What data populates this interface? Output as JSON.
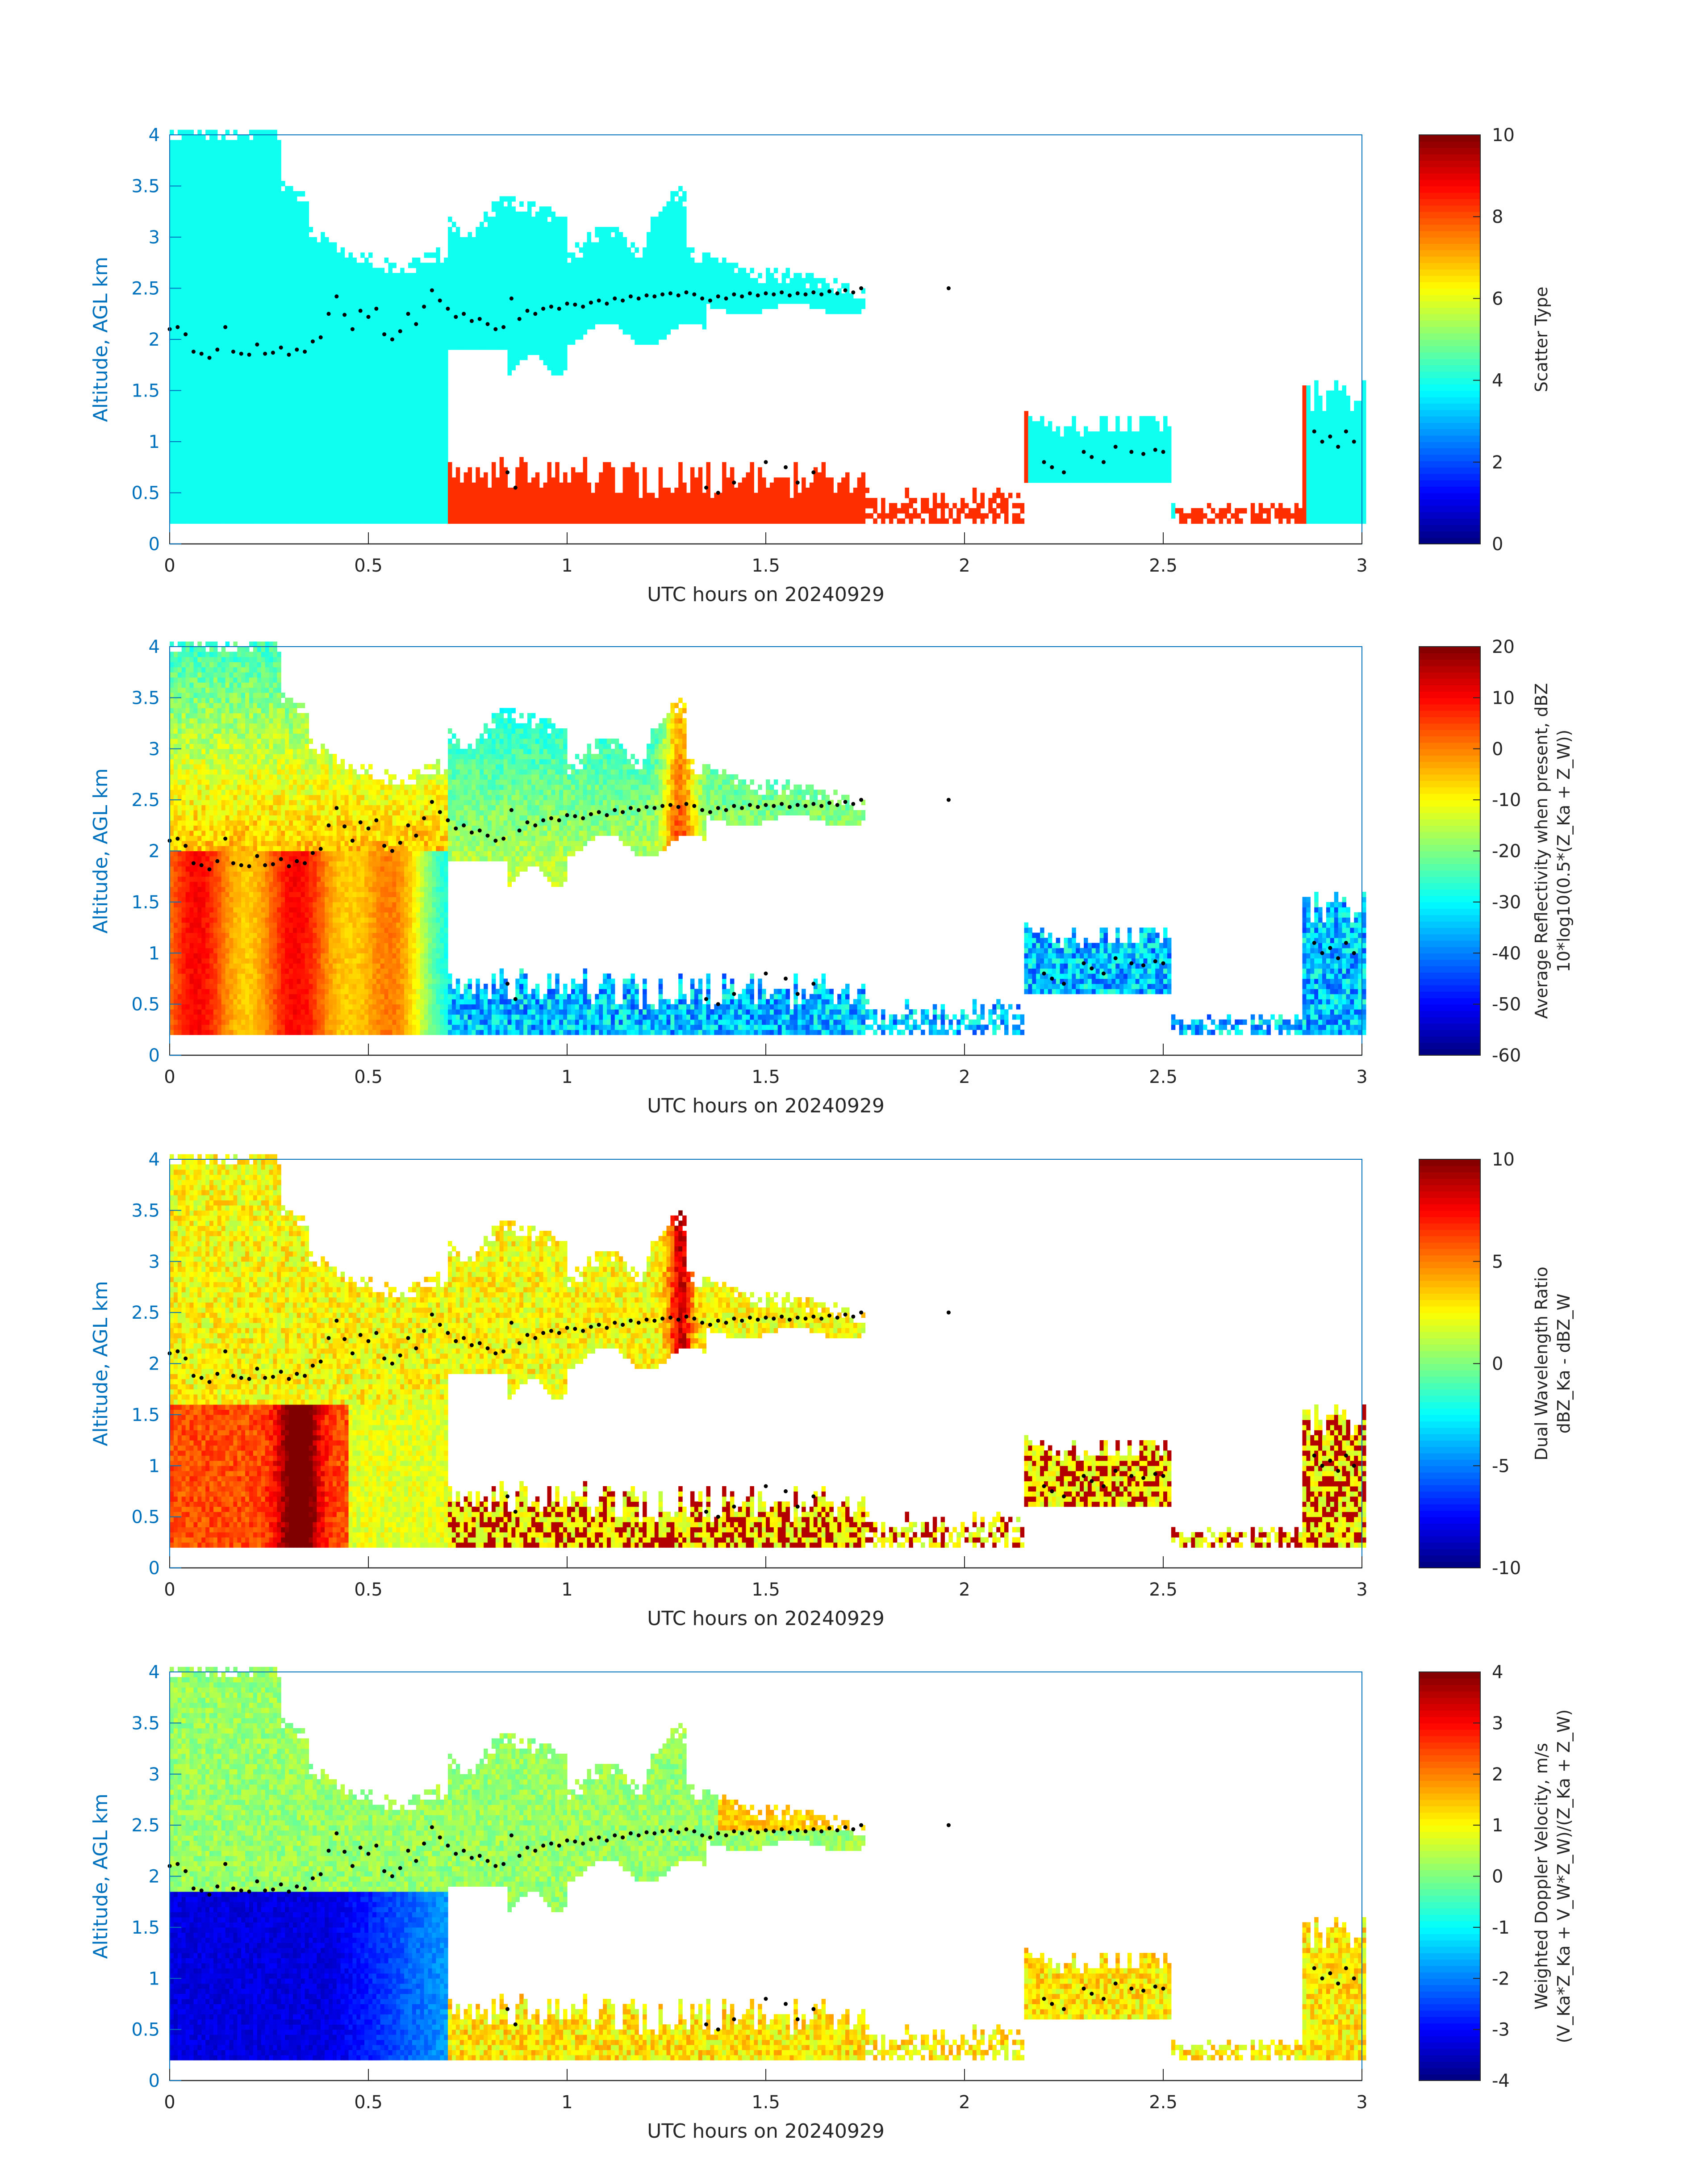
{
  "chart_data": [
    {
      "type": "heatmap",
      "xlabel": "UTC hours on 20240929",
      "ylabel": "Altitude, AGL km",
      "xlim": [
        0,
        3
      ],
      "ylim": [
        0,
        4
      ],
      "xticks": [
        "0",
        "0.5",
        "1",
        "1.5",
        "2",
        "2.5",
        "3"
      ],
      "yticks": [
        "0",
        "0.5",
        "1",
        "1.5",
        "2",
        "2.5",
        "3",
        "3.5",
        "4"
      ],
      "colorbar": {
        "label_lines": [
          "Scatter Type"
        ],
        "min": 0,
        "max": 10,
        "ticks": [
          "0",
          "2",
          "4",
          "6",
          "8",
          "10"
        ]
      },
      "cmap": "jet",
      "dominant_values": [
        3.9,
        8.3
      ]
    },
    {
      "type": "heatmap",
      "xlabel": "UTC hours on 20240929",
      "ylabel": "Altitude, AGL km",
      "xlim": [
        0,
        3
      ],
      "ylim": [
        0,
        4
      ],
      "xticks": [
        "0",
        "0.5",
        "1",
        "1.5",
        "2",
        "2.5",
        "3"
      ],
      "yticks": [
        "0",
        "0.5",
        "1",
        "1.5",
        "2",
        "2.5",
        "3",
        "3.5",
        "4"
      ],
      "colorbar": {
        "label_lines": [
          "Average Reflectivity when present, dBZ",
          "10*log10(0.5*(Z_Ka + Z_W))"
        ],
        "min": -60,
        "max": 20,
        "ticks": [
          "-60",
          "-50",
          "-40",
          "-30",
          "-20",
          "-10",
          "0",
          "10",
          "20"
        ]
      },
      "cmap": "jet"
    },
    {
      "type": "heatmap",
      "xlabel": "UTC hours on 20240929",
      "ylabel": "Altitude, AGL km",
      "xlim": [
        0,
        3
      ],
      "ylim": [
        0,
        4
      ],
      "xticks": [
        "0",
        "0.5",
        "1",
        "1.5",
        "2",
        "2.5",
        "3"
      ],
      "yticks": [
        "0",
        "0.5",
        "1",
        "1.5",
        "2",
        "2.5",
        "3",
        "3.5",
        "4"
      ],
      "colorbar": {
        "label_lines": [
          "Dual Wavelength Ratio",
          "dBZ_Ka - dBZ_W"
        ],
        "min": -10,
        "max": 10,
        "ticks": [
          "-10",
          "-5",
          "0",
          "5",
          "10"
        ]
      },
      "cmap": "jet"
    },
    {
      "type": "heatmap",
      "xlabel": "UTC hours on 20240929",
      "ylabel": "Altitude, AGL km",
      "xlim": [
        0,
        3
      ],
      "ylim": [
        0,
        4
      ],
      "xticks": [
        "0",
        "0.5",
        "1",
        "1.5",
        "2",
        "2.5",
        "3"
      ],
      "yticks": [
        "0",
        "0.5",
        "1",
        "1.5",
        "2",
        "2.5",
        "3",
        "3.5",
        "4"
      ],
      "colorbar": {
        "label_lines": [
          "Weighted Doppler Velocity, m/s",
          "(V_Ka*Z_Ka + V_W*Z_W)/(Z_Ka + Z_W)"
        ],
        "min": -4,
        "max": 4,
        "ticks": [
          "-4",
          "-3",
          "-2",
          "-1",
          "0",
          "1",
          "2",
          "3",
          "4"
        ]
      },
      "cmap": "jet"
    }
  ],
  "cloud_top_points": {
    "t": [
      0.0,
      0.02,
      0.04,
      0.06,
      0.08,
      0.1,
      0.12,
      0.14,
      0.16,
      0.18,
      0.2,
      0.22,
      0.24,
      0.26,
      0.28,
      0.3,
      0.32,
      0.34,
      0.36,
      0.38,
      0.4,
      0.42,
      0.44,
      0.46,
      0.48,
      0.5,
      0.52,
      0.54,
      0.56,
      0.58,
      0.6,
      0.62,
      0.64,
      0.66,
      0.68,
      0.7,
      0.72,
      0.74,
      0.76,
      0.78,
      0.8,
      0.82,
      0.84,
      0.86,
      0.88,
      0.9,
      0.92,
      0.94,
      0.96,
      0.98,
      1.0,
      1.02,
      1.04,
      1.06,
      1.08,
      1.1,
      1.12,
      1.14,
      1.16,
      1.18,
      1.2,
      1.22,
      1.24,
      1.26,
      1.28,
      1.3,
      1.32,
      1.34,
      1.36,
      1.38,
      1.4,
      1.42,
      1.44,
      1.46,
      1.48,
      1.5,
      1.52,
      1.54,
      1.56,
      1.58,
      1.6,
      1.62,
      1.64,
      1.66,
      1.68,
      1.7,
      1.72,
      1.74,
      1.96
    ],
    "z": [
      2.1,
      2.12,
      2.05,
      1.88,
      1.86,
      1.82,
      1.9,
      2.12,
      1.88,
      1.86,
      1.85,
      1.95,
      1.86,
      1.87,
      1.92,
      1.85,
      1.9,
      1.88,
      1.98,
      2.02,
      2.25,
      2.42,
      2.24,
      2.1,
      2.28,
      2.22,
      2.3,
      2.05,
      2.0,
      2.08,
      2.25,
      2.15,
      2.32,
      2.48,
      2.38,
      2.3,
      2.22,
      2.25,
      2.18,
      2.2,
      2.15,
      2.1,
      2.12,
      2.4,
      2.2,
      2.28,
      2.25,
      2.3,
      2.32,
      2.3,
      2.35,
      2.34,
      2.32,
      2.36,
      2.38,
      2.35,
      2.4,
      2.38,
      2.42,
      2.4,
      2.43,
      2.42,
      2.44,
      2.45,
      2.43,
      2.46,
      2.44,
      2.4,
      2.38,
      2.42,
      2.4,
      2.44,
      2.42,
      2.45,
      2.43,
      2.45,
      2.44,
      2.46,
      2.43,
      2.45,
      2.44,
      2.46,
      2.44,
      2.47,
      2.45,
      2.48,
      2.46,
      2.5,
      2.5
    ]
  },
  "low_cloud_points": {
    "t": [
      0.85,
      0.87,
      1.35,
      1.38,
      1.42,
      1.5,
      1.55,
      1.58,
      1.62,
      2.2,
      2.22,
      2.25,
      2.3,
      2.32,
      2.35,
      2.38,
      2.42,
      2.45,
      2.48,
      2.5,
      2.88,
      2.9,
      2.92,
      2.94,
      2.96,
      2.98
    ],
    "z": [
      0.7,
      0.55,
      0.55,
      0.5,
      0.6,
      0.8,
      0.75,
      0.6,
      0.7,
      0.8,
      0.75,
      0.7,
      0.9,
      0.85,
      0.8,
      0.95,
      0.9,
      0.88,
      0.92,
      0.9,
      1.1,
      1.0,
      1.05,
      0.95,
      1.1,
      1.0
    ]
  }
}
